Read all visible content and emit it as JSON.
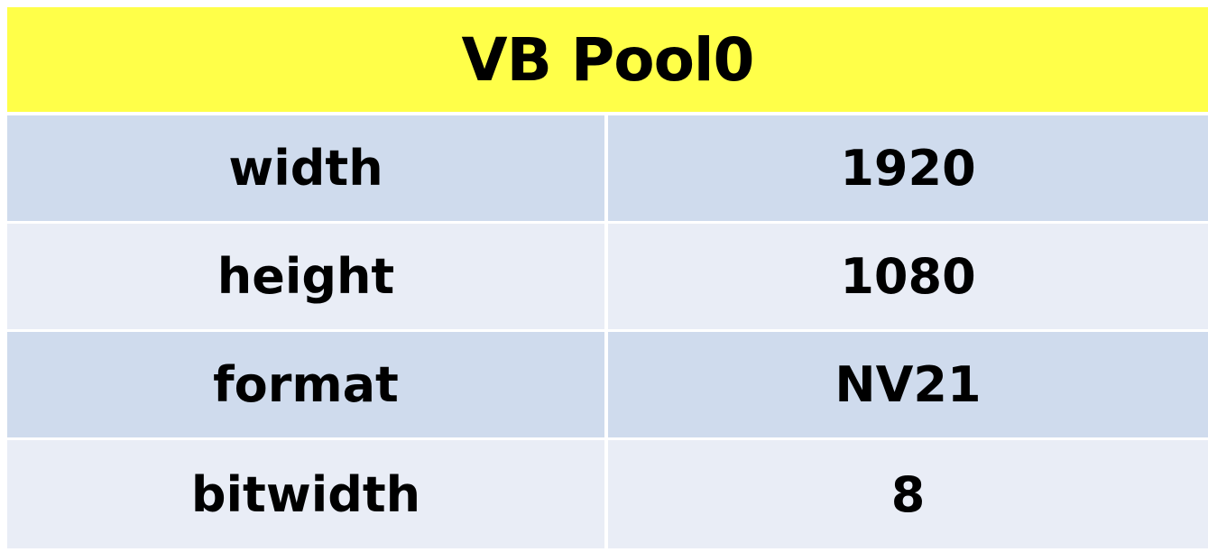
{
  "table": {
    "title": "VB Pool0",
    "rows": [
      {
        "key": "width",
        "value": "1920"
      },
      {
        "key": "height",
        "value": "1080"
      },
      {
        "key": "format",
        "value": "NV21"
      },
      {
        "key": "bitwidth",
        "value": "8"
      }
    ]
  },
  "colors": {
    "header_background": "#ffff49",
    "row_dark": "#cfdbed",
    "row_light": "#e9edf6",
    "border": "#ffffff"
  }
}
